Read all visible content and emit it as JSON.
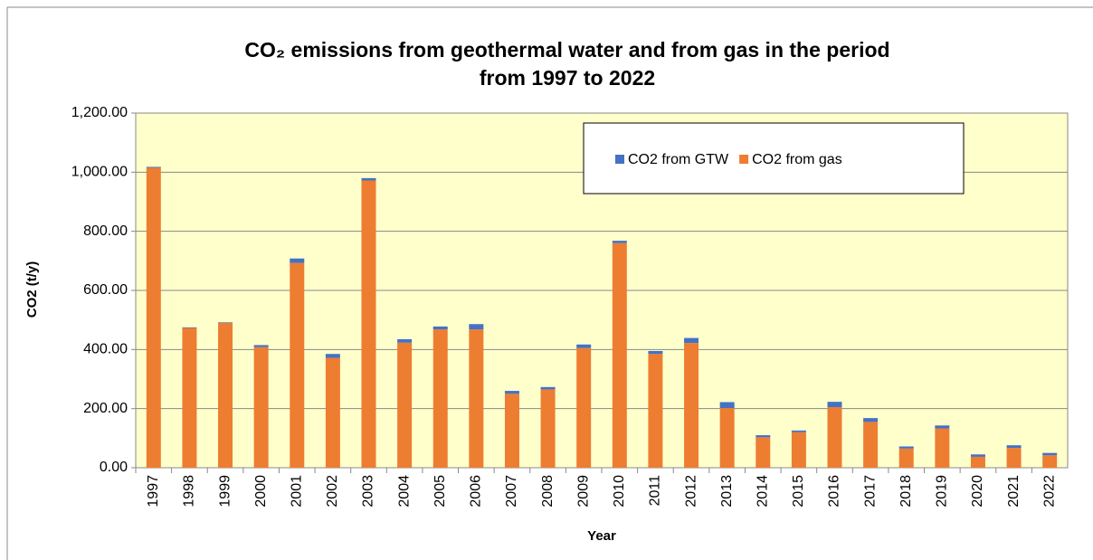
{
  "chart_data": {
    "type": "stacked_bar",
    "title": [
      "CO₂ emissions from geothermal water and from gas in the period",
      "from 1997 to 2022"
    ],
    "x_label": "Year",
    "y_label": "CO2 (t/y)",
    "categories": [
      "1997",
      "1998",
      "1999",
      "2000",
      "2001",
      "2002",
      "2003",
      "2004",
      "2005",
      "2006",
      "2007",
      "2008",
      "2009",
      "2010",
      "2011",
      "2012",
      "2013",
      "2014",
      "2015",
      "2016",
      "2017",
      "2018",
      "2019",
      "2020",
      "2021",
      "2022"
    ],
    "series": [
      {
        "name": "CO2 from GTW",
        "color": "#4472c4",
        "values": [
          3,
          2,
          2,
          7,
          15,
          13,
          8,
          12,
          10,
          18,
          10,
          8,
          12,
          8,
          10,
          17,
          20,
          7,
          6,
          18,
          13,
          7,
          10,
          8,
          9,
          8
        ]
      },
      {
        "name": "CO2 from gas",
        "color": "#ed7d31",
        "values": [
          1015,
          473,
          490,
          408,
          693,
          372,
          972,
          423,
          468,
          468,
          250,
          265,
          405,
          760,
          385,
          422,
          202,
          103,
          120,
          205,
          155,
          65,
          133,
          37,
          67,
          42
        ]
      }
    ],
    "ylim": [
      0,
      1200
    ],
    "yticks": [
      {
        "value": 0,
        "label": "0.00"
      },
      {
        "value": 200,
        "label": "200.00"
      },
      {
        "value": 400,
        "label": "400.00"
      },
      {
        "value": 600,
        "label": "600.00"
      },
      {
        "value": 800,
        "label": "800.00"
      },
      {
        "value": 1000,
        "label": "1,000.00"
      },
      {
        "value": 1200,
        "label": "1,200.00"
      }
    ],
    "grid": true,
    "plot_background": "#ffffcc",
    "legend": "top-right"
  }
}
